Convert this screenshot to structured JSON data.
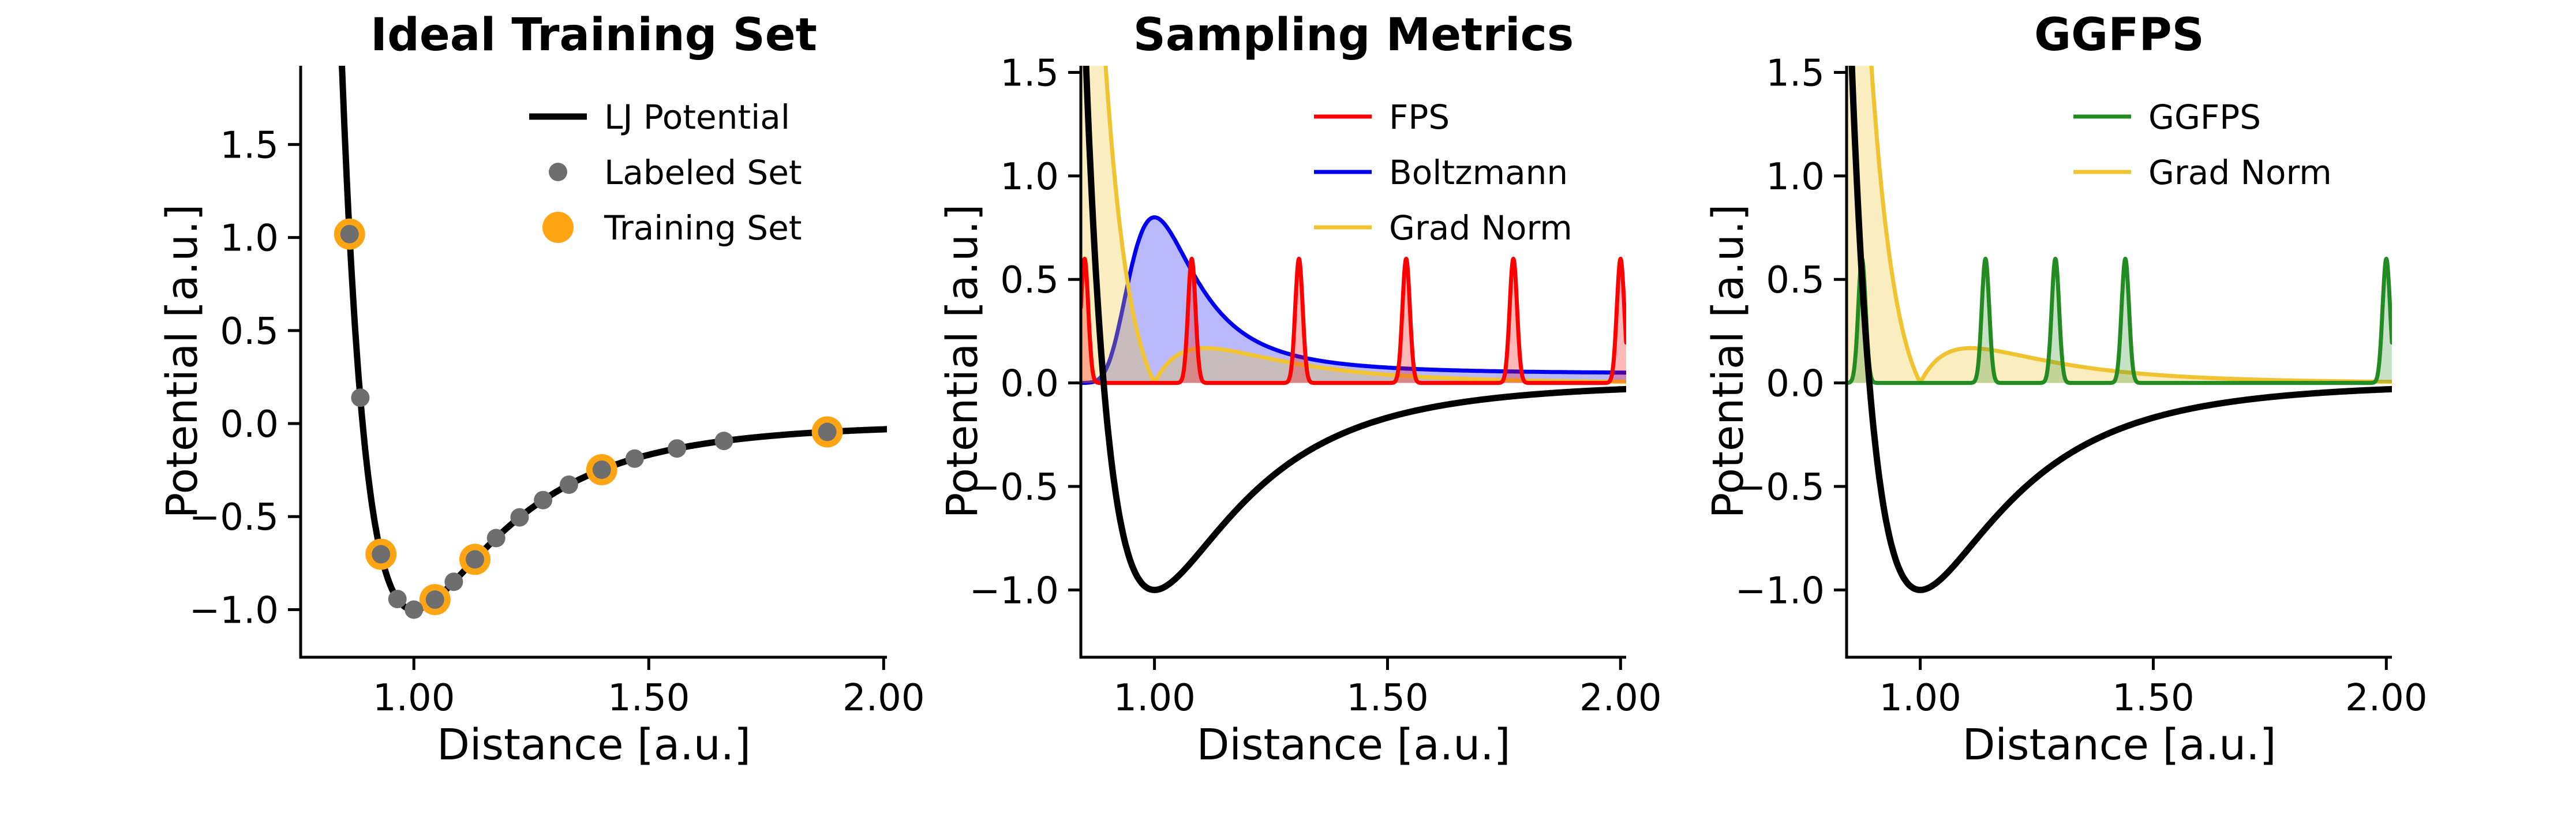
{
  "chart_data": [
    {
      "type": "line",
      "title": "Ideal Training Set",
      "xlabel": "Distance [a.u.]",
      "ylabel": "Potential [a.u.]",
      "xlim": [
        0.759,
        2.007
      ],
      "ylim": [
        -1.256,
        1.923
      ],
      "xticks": [
        1.0,
        1.5,
        2.0
      ],
      "yticks": [
        1.5,
        1.0,
        0.5,
        0.0,
        -0.5,
        -1.0
      ],
      "grid": false,
      "curves": [
        {
          "name": "LJ Potential",
          "kind": "lj",
          "formula": "V(r) = r^-12 - 2 r^-6, minimum -1.0 at r = 1.0",
          "color": "#000000",
          "linewidth": 11,
          "fill": false
        }
      ],
      "scatter": [
        {
          "name": "Labeled Set",
          "color": "#6e6e6e",
          "radius": 16,
          "r": [
            0.863,
            0.886,
            0.93,
            0.965,
            1.0,
            1.045,
            1.085,
            1.13,
            1.175,
            1.225,
            1.275,
            1.33,
            1.4,
            1.47,
            1.56,
            1.66,
            1.88
          ]
        },
        {
          "name": "Training Set",
          "color": "#ffa513",
          "radius": 27,
          "r": [
            0.863,
            0.93,
            1.045,
            1.13,
            1.4,
            1.88
          ]
        }
      ],
      "legend": {
        "position": "upper right",
        "entries": [
          {
            "label": "LJ Potential",
            "swatch": "line",
            "color": "#000000",
            "weight": 11
          },
          {
            "label": "Labeled Set",
            "swatch": "dot",
            "color": "#6e6e6e",
            "size": 16
          },
          {
            "label": "Training Set",
            "swatch": "dot",
            "color": "#ffa513",
            "size": 27
          }
        ]
      }
    },
    {
      "type": "line",
      "title": "Sampling Metrics",
      "xlabel": "Distance [a.u.]",
      "ylabel": "Potential [a.u.]",
      "xlim": [
        0.842,
        2.012
      ],
      "ylim": [
        -1.325,
        1.532
      ],
      "xticks": [
        1.0,
        1.5,
        2.0
      ],
      "yticks": [
        1.5,
        1.0,
        0.5,
        0.0,
        -0.5,
        -1.0
      ],
      "grid": false,
      "curves": [
        {
          "name": "Boltzmann",
          "kind": "boltzmann",
          "amplitude": 0.8,
          "kT": 0.35,
          "v_min": -1.0,
          "color": "#0000ee",
          "linewidth": 7,
          "fill": true,
          "fill_alpha": 0.28
        },
        {
          "name": "Grad Norm",
          "kind": "gradnorm",
          "scale": 0.0625,
          "color": "#f0c330",
          "linewidth": 7,
          "fill": true,
          "fill_alpha": 0.3
        },
        {
          "name": "FPS",
          "kind": "spikes",
          "centers": [
            0.85,
            1.08,
            1.31,
            1.54,
            1.77,
            2.0
          ],
          "height": 0.6,
          "sigma": 0.008,
          "color": "#ff0000",
          "linewidth": 7,
          "fill": true,
          "fill_alpha": 0.28
        },
        {
          "name": "LJ Potential",
          "kind": "lj",
          "formula": "V(r) = r^-12 - 2 r^-6",
          "color": "#000000",
          "linewidth": 11,
          "fill": false
        }
      ],
      "legend": {
        "position": "upper center",
        "entries": [
          {
            "label": "FPS",
            "swatch": "line",
            "color": "#ff0000",
            "weight": 7
          },
          {
            "label": "Boltzmann",
            "swatch": "line",
            "color": "#0000ee",
            "weight": 7
          },
          {
            "label": "Grad Norm",
            "swatch": "line",
            "color": "#f0c330",
            "weight": 7
          }
        ]
      }
    },
    {
      "type": "line",
      "title": "GGFPS",
      "xlabel": "Distance [a.u.]",
      "ylabel": "Potential [a.u.]",
      "xlim": [
        0.842,
        2.012
      ],
      "ylim": [
        -1.325,
        1.532
      ],
      "xticks": [
        1.0,
        1.5,
        2.0
      ],
      "yticks": [
        1.5,
        1.0,
        0.5,
        0.0,
        -0.5,
        -1.0
      ],
      "grid": false,
      "curves": [
        {
          "name": "Grad Norm",
          "kind": "gradnorm",
          "scale": 0.0625,
          "color": "#f0c330",
          "linewidth": 7,
          "fill": true,
          "fill_alpha": 0.3
        },
        {
          "name": "GGFPS",
          "kind": "spikes",
          "centers": [
            0.875,
            1.14,
            1.29,
            1.44,
            2.0
          ],
          "height": 0.6,
          "sigma": 0.008,
          "color": "#228B22",
          "linewidth": 7,
          "fill": true,
          "fill_alpha": 0.25
        },
        {
          "name": "LJ Potential",
          "kind": "lj",
          "formula": "V(r) = r^-12 - 2 r^-6",
          "color": "#000000",
          "linewidth": 11,
          "fill": false
        }
      ],
      "legend": {
        "position": "upper center",
        "entries": [
          {
            "label": "GGFPS",
            "swatch": "line",
            "color": "#228B22",
            "weight": 7
          },
          {
            "label": "Grad Norm",
            "swatch": "line",
            "color": "#f0c330",
            "weight": 7
          }
        ]
      }
    }
  ]
}
